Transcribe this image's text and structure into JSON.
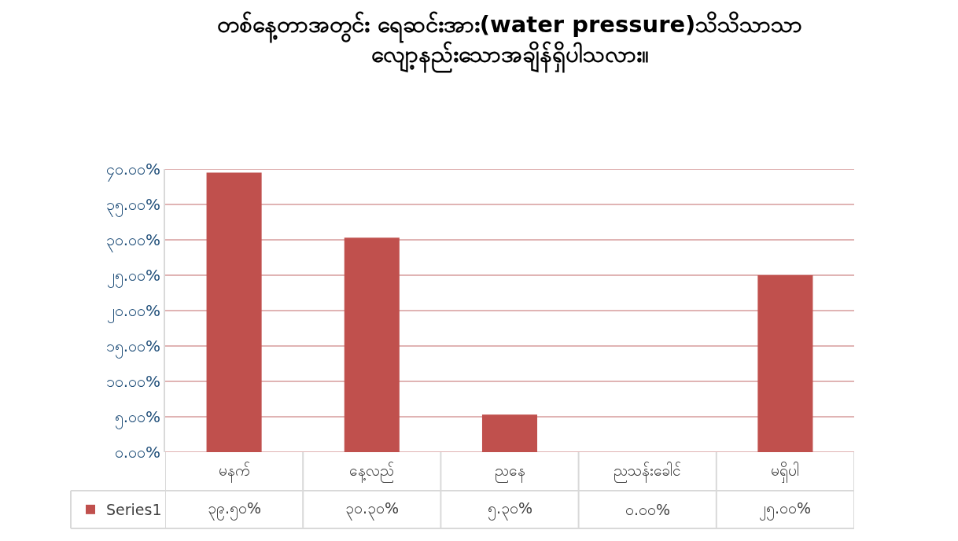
{
  "chart_data": {
    "type": "bar",
    "title": "တစ်နေ့တာအတွင်း ရေဆင်းအား(water pressure)သိသိသာသာ\nလျော့နည်းသောအချိန်ရှိပါသလား။",
    "categories": [
      "မနက်",
      "နေ့လည်",
      "ညနေ",
      "ညသန်းခေါင်",
      "မရှိပါ"
    ],
    "series": [
      {
        "name": "Series1",
        "color": "#c0504d",
        "values": [
          39.5,
          30.3,
          5.3,
          0,
          25
        ],
        "value_labels": [
          "၃၉.၅၀%",
          "၃၀.၃၀%",
          "၅.၃၀%",
          "၀.၀၀%",
          "၂၅.၀၀%"
        ]
      }
    ],
    "ylim": [
      0,
      40
    ],
    "yticks": [
      {
        "value": 0,
        "label": "၀.၀၀%"
      },
      {
        "value": 5,
        "label": "၅.၀၀%"
      },
      {
        "value": 10,
        "label": "၁၀.၀၀%"
      },
      {
        "value": 15,
        "label": "၁၅.၀၀%"
      },
      {
        "value": 20,
        "label": "၂၀.၀၀%"
      },
      {
        "value": 25,
        "label": "၂၅.၀၀%"
      },
      {
        "value": 30,
        "label": "၃၀.၀၀%"
      },
      {
        "value": 35,
        "label": "၃၅.၀၀%"
      },
      {
        "value": 40,
        "label": "၄၀.၀၀%"
      }
    ],
    "grid": "y",
    "legend": "bottom left"
  }
}
